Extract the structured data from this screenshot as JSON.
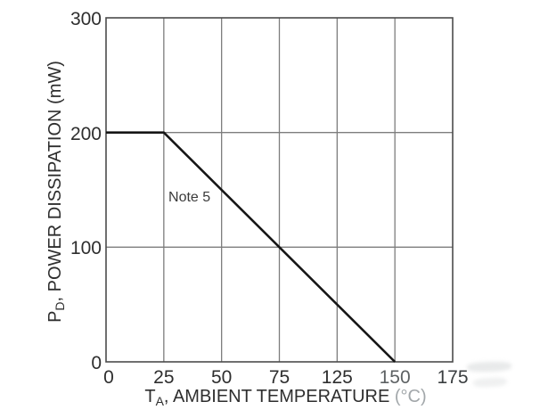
{
  "figure": {
    "background": "#ffffff",
    "kind": "power-derating-curve"
  },
  "chart_data": {
    "type": "line",
    "title": "",
    "xlabel": {
      "symbol": "T",
      "subscript": "A",
      "rest": ", AMBIENT TEMPERATURE ",
      "unit": "(°C)"
    },
    "ylabel": {
      "symbol": "P",
      "subscript": "D",
      "rest": ", POWER DISSIPATION (mW)"
    },
    "x_tick_labels": [
      "0",
      "25",
      "50",
      "75",
      "125",
      "150",
      "175"
    ],
    "y_tick_labels": [
      "0",
      "100",
      "200",
      "300"
    ],
    "ylim": [
      0,
      300
    ],
    "grid": true,
    "legend": "none",
    "series": [
      {
        "name": "power-dissipation-derating",
        "points_by_tick_index": [
          {
            "tick": 0,
            "value": 200
          },
          {
            "tick": 1,
            "value": 200
          },
          {
            "tick": 5,
            "value": 0
          }
        ],
        "points_labeled_units": [
          [
            0,
            200
          ],
          [
            25,
            200
          ],
          [
            150,
            0
          ]
        ],
        "crosses": [
          {
            "x_label": "75",
            "value": 100
          }
        ]
      }
    ],
    "annotation": {
      "label": "Note 5",
      "tick_x": 1.08,
      "value_y": 143
    },
    "faded_x_tick": "150",
    "slightly_faded_x_tick": "175"
  },
  "colors": {
    "curve": "#161616",
    "grid": "#7d7d7d",
    "border": "#4b4b4b",
    "text": "#2e2e2e",
    "unit_text": "#a2a7aa"
  }
}
